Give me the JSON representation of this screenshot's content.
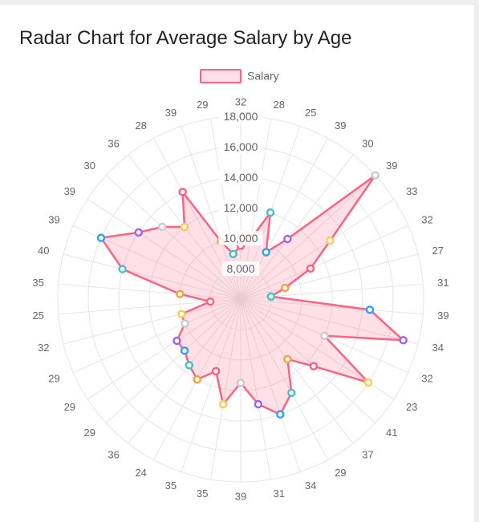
{
  "chart_data": {
    "type": "radar",
    "title": "Radar Chart for Average Salary by Age",
    "labels": [
      "32",
      "28",
      "25",
      "39",
      "30",
      "39",
      "33",
      "32",
      "27",
      "31",
      "39",
      "34",
      "32",
      "23",
      "41",
      "37",
      "29",
      "34",
      "31",
      "39",
      "35",
      "35",
      "24",
      "36",
      "29",
      "29",
      "29",
      "32",
      "25",
      "35",
      "40",
      "39",
      "39",
      "30",
      "36",
      "28",
      "39",
      "29"
    ],
    "series": [
      {
        "name": "Salary",
        "values": [
          9500,
          10000,
          12000,
          9500,
          11000,
          18000,
          13000,
          11000,
          9000,
          8000,
          14500,
          17000,
          12000,
          16000,
          12500,
          11000,
          13000,
          14000,
          13000,
          11500,
          13000,
          11000,
          12000,
          11500,
          11000,
          11000,
          10000,
          10000,
          8000,
          10000,
          14000,
          16000,
          14000,
          13000,
          12000,
          14000,
          10000,
          9000
        ],
        "fill": "rgba(255,99,132,0.2)",
        "stroke": "#ff6384"
      }
    ],
    "r_ticks": [
      "8,000",
      "10,000",
      "12,000",
      "14,000",
      "16,000",
      "18,000"
    ],
    "r_range": [
      6000,
      18000
    ],
    "legend_position": "top",
    "grid": true,
    "point_colors": [
      "#ff6384",
      "#ff9f40",
      "#4bc0c0",
      "#36a2eb",
      "#9966ff",
      "#c9cbcf",
      "#ffcd56"
    ]
  }
}
